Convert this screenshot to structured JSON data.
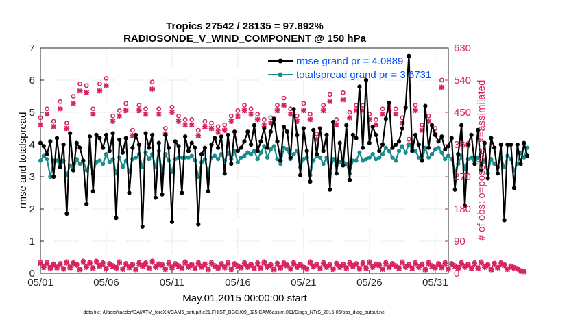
{
  "chart_data": {
    "type": "line",
    "title": "Tropics 27542 / 28135 = 97.892%",
    "subtitle": "RADIOSONDE_V_WIND_COMPONENT @ 150 hPa",
    "xlabel": "May.01,2015 00:00:00 start",
    "ylabel_left": "rmse and totalspread",
    "ylabel_right": "# of obs: o=possible; ×=assimilated",
    "footnote": "data file: /Users/raeder/DAI/ATM_forcXX/CAM6_setup/f.e21.FHIST_BGC.f09_025.CAM6assim.011/Diags_NTrS_2015-05/obs_diag_output.nc",
    "xlim": [
      1,
      32
    ],
    "ylim_left": [
      0,
      7
    ],
    "ylim_right": [
      0,
      630
    ],
    "x_ticks": [
      1,
      6,
      11,
      16,
      21,
      26,
      31
    ],
    "x_tick_labels": [
      "05/01",
      "05/06",
      "05/11",
      "05/16",
      "05/21",
      "05/26",
      "05/31"
    ],
    "y_ticks_left": [
      "0",
      "1",
      "2",
      "3",
      "4",
      "5",
      "6",
      "7"
    ],
    "y_ticks_right": [
      "0",
      "90",
      "180",
      "270",
      "360",
      "450",
      "540",
      "630"
    ],
    "grid": true,
    "legend_position": "top-right",
    "x_start": 1.0,
    "x_step": 0.25,
    "series": [
      {
        "name": "rmse grand pr = 4.0889",
        "color": "#000000",
        "axis": "left",
        "values": [
          4.05,
          3.95,
          3.7,
          4.1,
          3.0,
          4.2,
          3.3,
          4.0,
          1.85,
          4.35,
          3.2,
          4.05,
          3.9,
          3.5,
          2.15,
          4.25,
          2.55,
          4.3,
          4.2,
          3.9,
          4.3,
          3.8,
          4.35,
          1.72,
          4.15,
          3.75,
          4.2,
          2.5,
          3.9,
          4.3,
          4.0,
          1.45,
          4.35,
          3.9,
          4.3,
          2.35,
          4.05,
          2.45,
          4.3,
          3.9,
          1.6,
          4.1,
          3.95,
          2.5,
          4.25,
          3.8,
          4.05,
          3.9,
          1.52,
          3.7,
          3.9,
          2.55,
          4.0,
          4.2,
          3.9,
          4.25,
          3.1,
          4.3,
          3.4,
          4.4,
          3.8,
          3.9,
          4.1,
          4.4,
          4.0,
          4.6,
          3.8,
          4.1,
          4.5,
          3.9,
          4.4,
          4.8,
          4.1,
          3.5,
          4.55,
          4.4,
          3.6,
          5.1,
          4.3,
          3.05,
          4.5,
          3.8,
          2.85,
          4.45,
          3.7,
          4.5,
          3.8,
          4.3,
          2.6,
          4.7,
          3.1,
          4.05,
          3.35,
          4.6,
          2.9,
          4.3,
          4.2,
          5.8,
          3.9,
          6.0,
          4.05,
          4.55,
          4.3,
          3.8,
          4.0,
          4.8,
          5.3,
          3.9,
          4.0,
          4.1,
          4.5,
          5.15,
          6.75,
          3.8,
          4.3,
          4.0,
          3.5,
          5.2,
          3.9,
          4.6,
          4.3,
          4.1,
          4.25,
          3.85,
          3.95,
          4.2,
          2.6,
          3.7,
          4.6,
          2.1,
          4.0,
          4.3,
          3.4,
          4.45,
          3.2,
          4.05,
          2.95,
          4.2,
          3.9,
          3.1,
          4.0,
          1.65,
          4.0,
          4.0,
          2.65,
          4.0,
          3.4,
          4.05,
          3.65
        ]
      },
      {
        "name": "totalspread grand pr = 3.6731",
        "color": "#1a8c8c",
        "axis": "left",
        "values": [
          3.5,
          3.65,
          3.55,
          3.0,
          3.5,
          3.5,
          3.3,
          3.5,
          3.05,
          3.35,
          3.2,
          3.55,
          3.4,
          3.5,
          3.2,
          3.45,
          3.1,
          3.45,
          3.5,
          3.4,
          3.7,
          3.45,
          3.55,
          3.1,
          3.6,
          3.3,
          3.5,
          3.15,
          3.55,
          3.6,
          3.7,
          3.3,
          3.75,
          3.55,
          3.7,
          3.3,
          3.8,
          3.1,
          3.7,
          3.5,
          3.15,
          3.55,
          3.6,
          3.6,
          3.6,
          3.6,
          3.65,
          3.5,
          3.0,
          3.45,
          3.55,
          3.1,
          3.6,
          3.65,
          3.55,
          3.7,
          3.5,
          3.75,
          3.55,
          3.8,
          3.45,
          3.6,
          3.65,
          3.75,
          3.7,
          3.8,
          3.55,
          3.75,
          3.95,
          3.6,
          3.85,
          3.95,
          3.55,
          3.4,
          3.9,
          3.85,
          3.55,
          3.7,
          3.8,
          3.3,
          3.55,
          3.6,
          3.05,
          3.5,
          3.65,
          3.6,
          3.4,
          3.6,
          3.1,
          3.55,
          3.35,
          3.45,
          3.45,
          3.4,
          3.1,
          3.5,
          3.5,
          3.75,
          3.5,
          3.55,
          3.6,
          3.7,
          3.55,
          3.6,
          3.7,
          3.9,
          3.8,
          3.6,
          3.5,
          3.8,
          3.95,
          3.75,
          4.0,
          3.9,
          3.8,
          3.6,
          3.5,
          3.9,
          3.6,
          3.7,
          3.85,
          3.9,
          3.75,
          3.55,
          3.65,
          3.55,
          3.15,
          3.4,
          3.65,
          3.25,
          3.55,
          3.6,
          3.4,
          3.6,
          3.35,
          3.5,
          3.1,
          3.55,
          3.4,
          3.3,
          3.6,
          3.3,
          3.65,
          3.55,
          3.2,
          3.4,
          3.75,
          3.6,
          3.9
        ]
      },
      {
        "name": "obs possible",
        "marker": "o",
        "color": "#d6245c",
        "axis": "right",
        "values": [
          32,
          20,
          31,
          17,
          27,
          18,
          28,
          14,
          33,
          18,
          30,
          26,
          12,
          35,
          20,
          31,
          16,
          35,
          23,
          30,
          14,
          28,
          22,
          17,
          33,
          13,
          28,
          18,
          26,
          12,
          31,
          23,
          30,
          16,
          35,
          20,
          27,
          25,
          13,
          31,
          18,
          28,
          22,
          16,
          33,
          20,
          26,
          15,
          31,
          20,
          27,
          12,
          31,
          22,
          17,
          28,
          18,
          31,
          13,
          28,
          22,
          17,
          31,
          20,
          26,
          15,
          30,
          16,
          33,
          20,
          25,
          12,
          29,
          17,
          30,
          24,
          14,
          31,
          20,
          26,
          18,
          14,
          33,
          21,
          26,
          15,
          31,
          20,
          25,
          13,
          29,
          20,
          26,
          16,
          31,
          23,
          28,
          14,
          30,
          16,
          33,
          20,
          27,
          25,
          13,
          31,
          18,
          28,
          22,
          16,
          33,
          20,
          26,
          15,
          31,
          20,
          27,
          12,
          31,
          22,
          17,
          28,
          18,
          31,
          13,
          28,
          22,
          17,
          31,
          20,
          26,
          15,
          30,
          16,
          33,
          20,
          25,
          12,
          29,
          17,
          30,
          25,
          13,
          21,
          17,
          14,
          8,
          6
        ],
        "big_values": [
          435,
          460,
          425,
          480,
          420,
          495,
          530,
          525,
          460,
          530,
          545,
          440,
          455,
          475,
          400,
          470,
          460,
          535,
          460,
          405,
          465,
          440,
          430,
          430,
          400,
          425,
          420,
          410,
          415,
          440,
          455,
          470,
          460,
          445,
          430,
          435,
          470,
          490,
          460,
          440,
          475,
          445,
          390,
          470,
          500,
          430,
          505,
          450,
          470,
          470,
          445,
          430,
          460,
          470,
          460,
          435,
          375,
          470,
          415,
          440,
          405,
          540
        ],
        "big_x_start": 1.0,
        "big_x_step": 0.5
      },
      {
        "name": "obs assimilated",
        "marker": "x",
        "color": "#d6245c",
        "axis": "right",
        "values": [
          28,
          17,
          27,
          15,
          24,
          16,
          25,
          12,
          29,
          16,
          27,
          23,
          10,
          31,
          17,
          28,
          14,
          31,
          20,
          26,
          12,
          25,
          19,
          15,
          29,
          11,
          25,
          16,
          23,
          10,
          27,
          20,
          26,
          14,
          31,
          17,
          24,
          22,
          11,
          27,
          16,
          25,
          19,
          14,
          29,
          17,
          23,
          13,
          27,
          17,
          24,
          10,
          27,
          19,
          15,
          25,
          16,
          27,
          11,
          25,
          19,
          15,
          27,
          17,
          23,
          13,
          26,
          14,
          29,
          17,
          22,
          10,
          26,
          15,
          26,
          21,
          12,
          27,
          17,
          23,
          16,
          12,
          29,
          18,
          23,
          13,
          27,
          17,
          22,
          11,
          26,
          17,
          23,
          14,
          27,
          20,
          25,
          12,
          26,
          14,
          29,
          17,
          24,
          22,
          11,
          27,
          16,
          25,
          19,
          14,
          29,
          17,
          23,
          13,
          27,
          17,
          24,
          10,
          27,
          19,
          15,
          25,
          16,
          27,
          11,
          25,
          19,
          15,
          27,
          17,
          23,
          13,
          26,
          14,
          29,
          17,
          22,
          10,
          26,
          15,
          26,
          22,
          11,
          18,
          15,
          12,
          6,
          4
        ],
        "big_values": [
          415,
          445,
          410,
          460,
          405,
          475,
          510,
          505,
          445,
          510,
          525,
          425,
          440,
          455,
          385,
          455,
          445,
          515,
          445,
          390,
          450,
          425,
          415,
          415,
          385,
          410,
          405,
          395,
          400,
          425,
          440,
          455,
          445,
          430,
          415,
          420,
          455,
          470,
          445,
          425,
          455,
          430,
          375,
          455,
          480,
          415,
          485,
          435,
          455,
          455,
          430,
          415,
          445,
          455,
          445,
          420,
          360,
          455,
          400,
          425,
          390,
          520
        ]
      }
    ]
  }
}
